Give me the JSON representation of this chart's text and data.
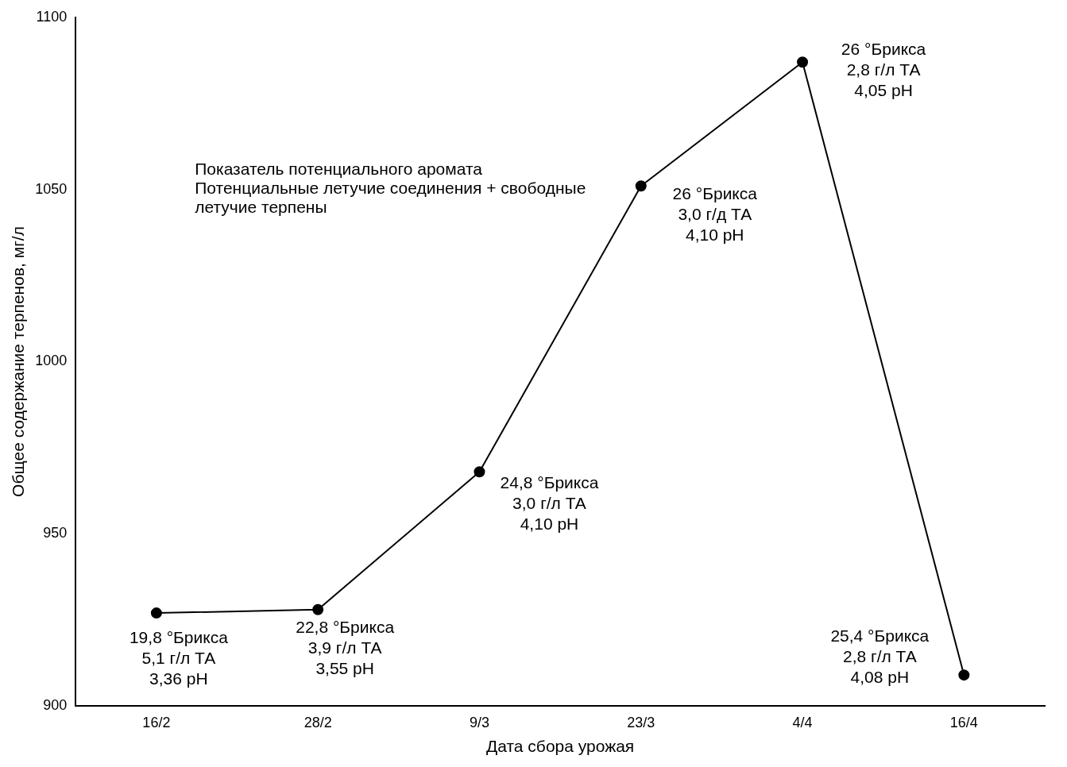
{
  "chart_data": {
    "type": "line",
    "xlabel": "Дата сбора урожая",
    "ylabel": "Общее содержание терпенов, мг/л",
    "categories": [
      "16/2",
      "28/2",
      "9/3",
      "23/3",
      "4/4",
      "16/4"
    ],
    "series": [
      {
        "color": "#000000",
        "values": [
          927,
          928,
          968,
          1051,
          1087,
          909
        ]
      }
    ],
    "ylim": [
      900,
      1100
    ],
    "yticks": [
      900,
      950,
      1000,
      1050,
      1100
    ],
    "grid": false,
    "legend": false,
    "marker": "circle",
    "line_style": "solid",
    "annotations": [
      "Показатель потенциального аромата\nПотенциальные летучие соединения + свободные\nлетучие терпены",
      {
        "text": "19,8 °Брикса\n5,1 г/л ТА\n3,36 pH",
        "x": "16/2",
        "y": 927
      },
      {
        "text": "22,8 °Брикса\n3,9 г/л ТА\n3,55 pH",
        "x": "28/2",
        "y": 928
      },
      {
        "text": "24,8 °Брикса\n3,0 г/л ТА\n4,10 pH",
        "x": "9/3",
        "y": 968
      },
      {
        "text": "26 °Брикса\n3,0 г/д ТА\n4,10 pH",
        "x": "23/3",
        "y": 1051
      },
      {
        "text": "26 °Брикса\n2,8 г/л ТА\n4,05 pH",
        "x": "4/4",
        "y": 1087
      },
      {
        "text": "25,4 °Брикса\n2,8 г/л ТА\n4,08 pH",
        "x": "16/4",
        "y": 909
      }
    ]
  }
}
